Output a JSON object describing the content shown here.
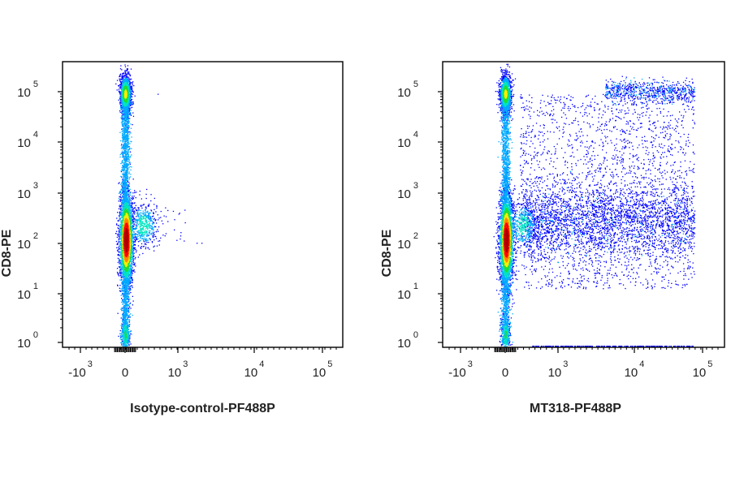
{
  "chart_data": [
    {
      "type": "scatter",
      "subtype": "flow-cytometry-density-dot-plot",
      "xlabel": "Isotype-control-PF488P",
      "ylabel": "CD8-PE",
      "x_scale": "biexponential",
      "y_scale": "log",
      "xlim": [
        -2000,
        200000
      ],
      "ylim": [
        1,
        200000
      ],
      "x_ticks": [
        {
          "base": "-10",
          "exp": "3"
        },
        {
          "base": "0",
          "exp": ""
        },
        {
          "base": "10",
          "exp": "3"
        },
        {
          "base": "10",
          "exp": "4"
        },
        {
          "base": "10",
          "exp": "5"
        }
      ],
      "y_ticks": [
        {
          "base": "10",
          "exp": "0"
        },
        {
          "base": "10",
          "exp": "1"
        },
        {
          "base": "10",
          "exp": "2"
        },
        {
          "base": "10",
          "exp": "3"
        },
        {
          "base": "10",
          "exp": "4"
        },
        {
          "base": "10",
          "exp": "5"
        }
      ],
      "populations": [
        {
          "description_of_cluster": "CD8-high, marker-negative",
          "x_center": 20,
          "y_center": 40000,
          "relative_density": "high"
        },
        {
          "description_of_cluster": "CD8-low, marker-negative",
          "x_center": 30,
          "y_center": 80,
          "relative_density": "highest"
        }
      ],
      "grid": false,
      "legend": "none"
    },
    {
      "type": "scatter",
      "subtype": "flow-cytometry-density-dot-plot",
      "xlabel": "MT318-PF488P",
      "ylabel": "CD8-PE",
      "x_scale": "biexponential",
      "y_scale": "log",
      "xlim": [
        -2000,
        200000
      ],
      "ylim": [
        1,
        200000
      ],
      "x_ticks": [
        {
          "base": "-10",
          "exp": "3"
        },
        {
          "base": "0",
          "exp": ""
        },
        {
          "base": "10",
          "exp": "3"
        },
        {
          "base": "10",
          "exp": "4"
        },
        {
          "base": "10",
          "exp": "5"
        }
      ],
      "y_ticks": [
        {
          "base": "10",
          "exp": "0"
        },
        {
          "base": "10",
          "exp": "1"
        },
        {
          "base": "10",
          "exp": "2"
        },
        {
          "base": "10",
          "exp": "3"
        },
        {
          "base": "10",
          "exp": "4"
        },
        {
          "base": "10",
          "exp": "5"
        }
      ],
      "populations": [
        {
          "description_of_cluster": "CD8-high, marker-negative",
          "x_center": 20,
          "y_center": 40000,
          "relative_density": "high"
        },
        {
          "description_of_cluster": "CD8-low, marker-negative",
          "x_center": 30,
          "y_center": 80,
          "relative_density": "highest"
        },
        {
          "description_of_cluster": "CD8-low, marker-positive",
          "x_range": [
            1000,
            100000
          ],
          "y_center": 150,
          "relative_density": "low"
        },
        {
          "description_of_cluster": "CD8-high, marker-positive",
          "x_range": [
            500,
            100000
          ],
          "y_center": 30000,
          "relative_density": "low"
        }
      ],
      "grid": false,
      "legend": "none"
    }
  ],
  "colors": {
    "axis": "#000000",
    "density_scale": [
      "#0000ff",
      "#00aaff",
      "#00e5c0",
      "#22dd33",
      "#ffee00",
      "#ff8800",
      "#ff0000",
      "#aa0000"
    ]
  }
}
